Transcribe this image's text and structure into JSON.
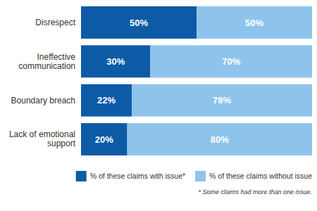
{
  "chart_data": {
    "type": "bar",
    "orientation": "horizontal",
    "stacked": true,
    "categories": [
      "Disrespect",
      "Ineffective communication",
      "Boundary breach",
      "Lack of emotional support"
    ],
    "series": [
      {
        "name": "% of these claims with issue*",
        "color": "#0d5ba6",
        "values": [
          50,
          30,
          22,
          20
        ],
        "value_labels": [
          "50%",
          "30%",
          "22%",
          "20%"
        ]
      },
      {
        "name": "% of these claims without issue",
        "color": "#8ec4ec",
        "values": [
          50,
          70,
          78,
          80
        ],
        "value_labels": [
          "50%",
          "70%",
          "78%",
          "80%"
        ]
      }
    ],
    "xlim": [
      0,
      100
    ],
    "data_labels": true,
    "tick_labels": "y",
    "legend": "bottom",
    "annotations": [
      "* Some claims had more than one issue."
    ]
  }
}
